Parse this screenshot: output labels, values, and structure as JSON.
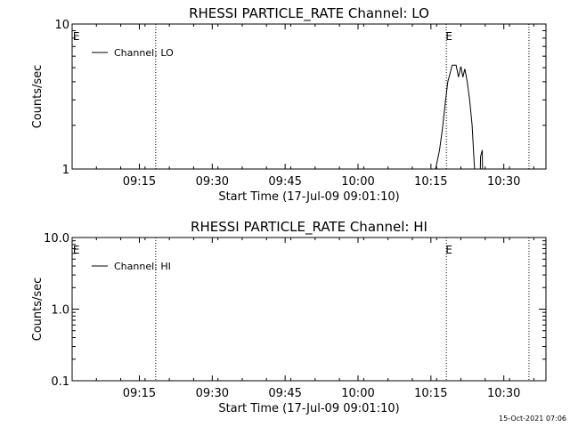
{
  "footer": {
    "timestamp": "15-Oct-2021 07:06"
  },
  "chart_data": [
    {
      "type": "line",
      "title": "RHESSI PARTICLE_RATE Channel: LO",
      "xlabel": "Start Time (17-Jul-09 09:01:10)",
      "ylabel": "Counts/sec",
      "x_unit": "minutes after 09:01:10",
      "xlim": [
        0,
        97.5
      ],
      "ylim": [
        1,
        10
      ],
      "yscale": "log",
      "yticks": [
        1,
        10
      ],
      "ytick_labels": [
        "1",
        "10"
      ],
      "xticks": [
        13.83,
        28.83,
        43.83,
        58.83,
        73.83,
        88.83
      ],
      "xtick_labels": [
        "09:15",
        "09:30",
        "09:45",
        "10:00",
        "10:15",
        "10:30"
      ],
      "vlines": [
        17.2,
        77.0,
        94.0
      ],
      "event_markers": [
        {
          "x": 0.3,
          "label": "E"
        },
        {
          "x": 77.0,
          "label": "E"
        }
      ],
      "legend": {
        "entries": [
          "Channel: LO"
        ],
        "position": "top-left"
      },
      "series": [
        {
          "name": "Channel: LO",
          "segments": [
            [
              [
                74.8,
                1.0
              ],
              [
                75.6,
                1.35
              ],
              [
                76.2,
                1.9
              ],
              [
                76.8,
                2.9
              ],
              [
                77.3,
                4.0
              ],
              [
                77.8,
                4.6
              ],
              [
                78.2,
                5.2
              ],
              [
                79.0,
                5.2
              ],
              [
                79.5,
                4.3
              ],
              [
                80.0,
                5.1
              ],
              [
                80.4,
                4.3
              ],
              [
                80.8,
                4.9
              ],
              [
                81.3,
                4.0
              ],
              [
                81.8,
                3.0
              ],
              [
                82.3,
                2.0
              ],
              [
                82.8,
                1.0
              ]
            ],
            [
              [
                84.0,
                1.0
              ],
              [
                84.05,
                1.22
              ],
              [
                84.4,
                1.35
              ],
              [
                84.45,
                1.0
              ]
            ]
          ]
        }
      ]
    },
    {
      "type": "line",
      "title": "RHESSI PARTICLE_RATE Channel: HI",
      "xlabel": "Start Time (17-Jul-09 09:01:10)",
      "ylabel": "Counts/sec",
      "x_unit": "minutes after 09:01:10",
      "xlim": [
        0,
        97.5
      ],
      "ylim": [
        0.1,
        10
      ],
      "yscale": "log",
      "yticks": [
        0.1,
        1,
        10
      ],
      "ytick_labels": [
        "0.1",
        "1.0",
        "10.0"
      ],
      "xticks": [
        13.83,
        28.83,
        43.83,
        58.83,
        73.83,
        88.83
      ],
      "xtick_labels": [
        "09:15",
        "09:30",
        "09:45",
        "10:00",
        "10:15",
        "10:30"
      ],
      "vlines": [
        17.2,
        77.0,
        94.0
      ],
      "event_markers": [
        {
          "x": 0.3,
          "label": "E"
        },
        {
          "x": 77.0,
          "label": "E"
        }
      ],
      "legend": {
        "entries": [
          "Channel: HI"
        ],
        "position": "top-left"
      },
      "series": [
        {
          "name": "Channel: HI",
          "segments": []
        }
      ]
    }
  ]
}
